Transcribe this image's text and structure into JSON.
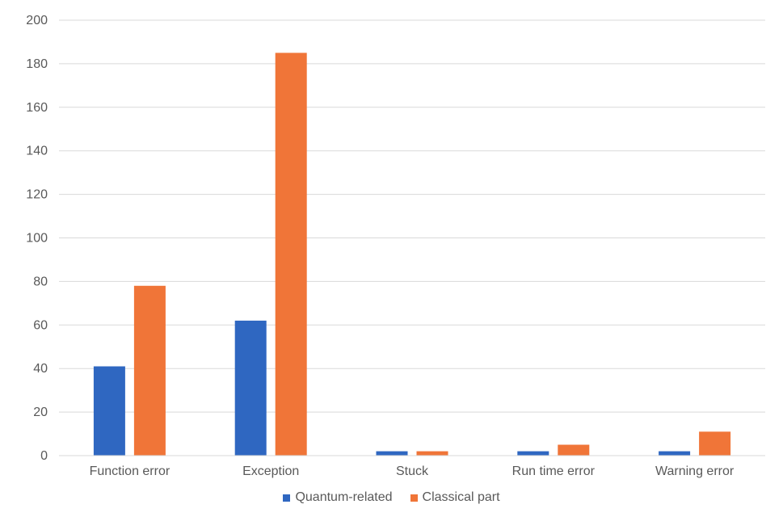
{
  "chart_data": {
    "type": "bar",
    "categories": [
      "Function error",
      "Exception",
      "Stuck",
      "Run time error",
      "Warning error"
    ],
    "series": [
      {
        "name": "Quantum-related",
        "color": "#2F67C1",
        "values": [
          41,
          62,
          2,
          2,
          2
        ]
      },
      {
        "name": "Classical part",
        "color": "#F07538",
        "values": [
          78,
          185,
          2,
          5,
          11
        ]
      }
    ],
    "ylim": [
      0,
      200
    ],
    "yticks": [
      0,
      20,
      40,
      60,
      80,
      100,
      120,
      140,
      160,
      180,
      200
    ],
    "grid": true,
    "legend_position": "bottom"
  }
}
